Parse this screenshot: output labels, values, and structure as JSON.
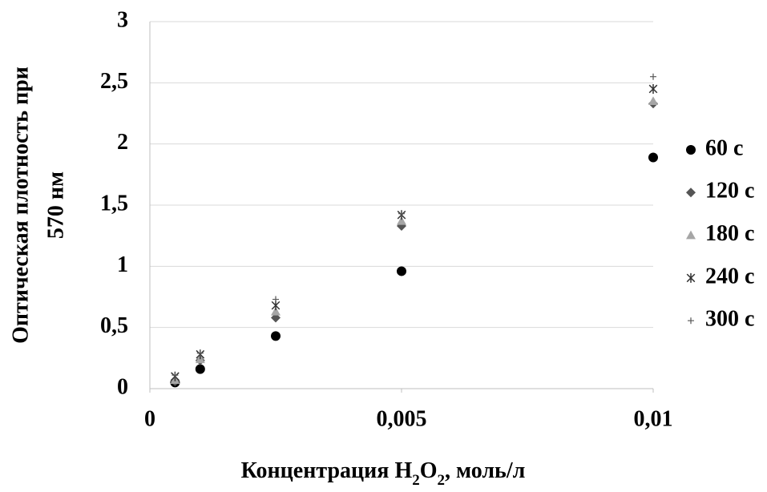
{
  "chart_data": {
    "type": "scatter",
    "xlabel": "Концентрация H2O2, моль/л",
    "ylabel": [
      "Оптическая плотность при",
      "570 нм"
    ],
    "x": [
      0.0005,
      0.001,
      0.0025,
      0.005,
      0.01
    ],
    "series": [
      {
        "name": "60 с",
        "color": "#000000",
        "marker": "circle",
        "values": [
          0.05,
          0.16,
          0.43,
          0.96,
          1.89
        ]
      },
      {
        "name": "120 с",
        "color": "#555555",
        "marker": "diamond",
        "values": [
          0.06,
          0.23,
          0.58,
          1.33,
          2.33
        ]
      },
      {
        "name": "180 с",
        "color": "#a6a6a6",
        "marker": "triangle",
        "values": [
          0.07,
          0.24,
          0.63,
          1.37,
          2.35
        ]
      },
      {
        "name": "240 с",
        "color": "#333333",
        "marker": "star",
        "values": [
          0.1,
          0.28,
          0.68,
          1.42,
          2.45
        ]
      },
      {
        "name": "300 с",
        "color": "#555555",
        "marker": "plus",
        "values": [
          0.11,
          0.29,
          0.73,
          1.43,
          2.55
        ]
      }
    ],
    "xlim": [
      0,
      0.01
    ],
    "xticks": [
      0,
      {
        "value": 0.005,
        "label": "0,005"
      },
      {
        "value": 0.01,
        "label": "0,01"
      }
    ],
    "ylim": [
      0,
      3
    ],
    "yticks": [
      0,
      {
        "value": 0.5,
        "label": "0,5"
      },
      1,
      {
        "value": 1.5,
        "label": "1,5"
      },
      2,
      {
        "value": 2.5,
        "label": "2,5"
      },
      3
    ],
    "grid": true,
    "legend": "right"
  }
}
